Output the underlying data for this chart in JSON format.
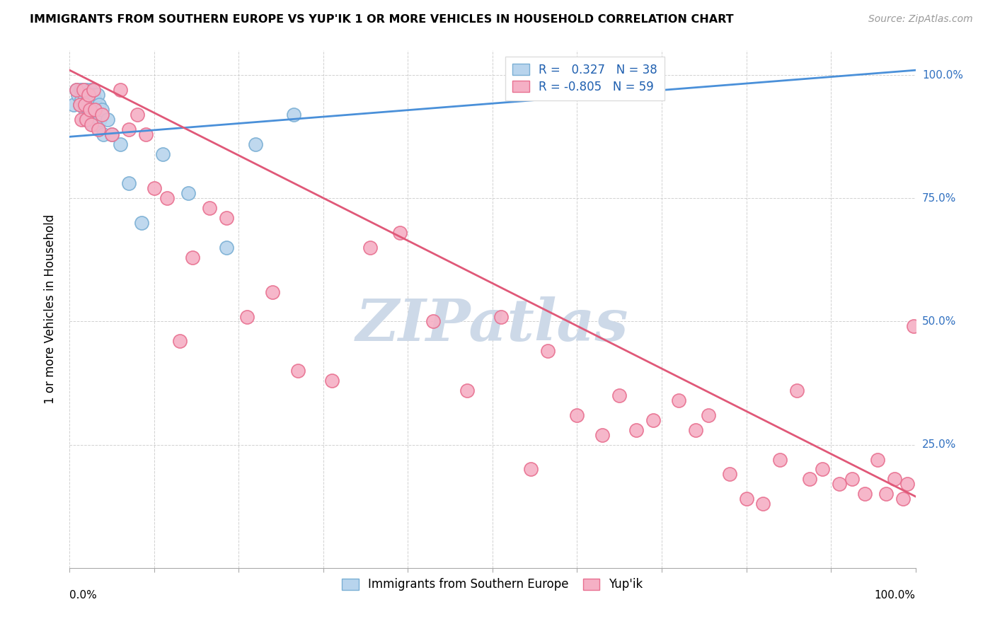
{
  "title": "IMMIGRANTS FROM SOUTHERN EUROPE VS YUP'IK 1 OR MORE VEHICLES IN HOUSEHOLD CORRELATION CHART",
  "source": "Source: ZipAtlas.com",
  "ylabel": "1 or more Vehicles in Household",
  "blue_series_label": "Immigrants from Southern Europe",
  "pink_series_label": "Yup'ik",
  "blue_r": 0.327,
  "blue_n": 38,
  "pink_r": -0.805,
  "pink_n": 59,
  "xlim": [
    0.0,
    1.0
  ],
  "ylim": [
    0.0,
    1.05
  ],
  "blue_dot_color": "#b8d4ed",
  "blue_dot_edge": "#7aafd4",
  "pink_dot_color": "#f5b0c5",
  "pink_dot_edge": "#e87090",
  "blue_line_color": "#4a90d9",
  "pink_line_color": "#e05878",
  "watermark_color": "#cdd9e8",
  "blue_line_y0": 0.875,
  "blue_line_y1": 1.01,
  "pink_line_y0": 1.01,
  "pink_line_y1": 0.145,
  "blue_points_x": [
    0.005,
    0.008,
    0.01,
    0.012,
    0.013,
    0.014,
    0.015,
    0.016,
    0.017,
    0.018,
    0.019,
    0.02,
    0.021,
    0.022,
    0.023,
    0.024,
    0.025,
    0.026,
    0.027,
    0.028,
    0.03,
    0.031,
    0.032,
    0.033,
    0.035,
    0.036,
    0.038,
    0.04,
    0.045,
    0.05,
    0.06,
    0.07,
    0.085,
    0.11,
    0.14,
    0.185,
    0.22,
    0.265
  ],
  "blue_points_y": [
    0.94,
    0.97,
    0.96,
    0.94,
    0.97,
    0.95,
    0.97,
    0.94,
    0.96,
    0.93,
    0.91,
    0.97,
    0.95,
    0.92,
    0.96,
    0.93,
    0.97,
    0.94,
    0.9,
    0.96,
    0.95,
    0.93,
    0.9,
    0.96,
    0.94,
    0.91,
    0.93,
    0.88,
    0.91,
    0.88,
    0.86,
    0.78,
    0.7,
    0.84,
    0.76,
    0.65,
    0.86,
    0.92
  ],
  "pink_points_x": [
    0.008,
    0.012,
    0.014,
    0.016,
    0.018,
    0.02,
    0.022,
    0.024,
    0.026,
    0.028,
    0.03,
    0.034,
    0.038,
    0.05,
    0.06,
    0.07,
    0.08,
    0.09,
    0.1,
    0.115,
    0.13,
    0.145,
    0.165,
    0.185,
    0.21,
    0.24,
    0.27,
    0.31,
    0.355,
    0.39,
    0.43,
    0.47,
    0.51,
    0.545,
    0.565,
    0.6,
    0.63,
    0.65,
    0.67,
    0.69,
    0.72,
    0.74,
    0.755,
    0.78,
    0.8,
    0.82,
    0.84,
    0.86,
    0.875,
    0.89,
    0.91,
    0.925,
    0.94,
    0.955,
    0.965,
    0.975,
    0.985,
    0.99,
    0.998
  ],
  "pink_points_y": [
    0.97,
    0.94,
    0.91,
    0.97,
    0.94,
    0.91,
    0.96,
    0.93,
    0.9,
    0.97,
    0.93,
    0.89,
    0.92,
    0.88,
    0.97,
    0.89,
    0.92,
    0.88,
    0.77,
    0.75,
    0.46,
    0.63,
    0.73,
    0.71,
    0.51,
    0.56,
    0.4,
    0.38,
    0.65,
    0.68,
    0.5,
    0.36,
    0.51,
    0.2,
    0.44,
    0.31,
    0.27,
    0.35,
    0.28,
    0.3,
    0.34,
    0.28,
    0.31,
    0.19,
    0.14,
    0.13,
    0.22,
    0.36,
    0.18,
    0.2,
    0.17,
    0.18,
    0.15,
    0.22,
    0.15,
    0.18,
    0.14,
    0.17,
    0.49
  ]
}
